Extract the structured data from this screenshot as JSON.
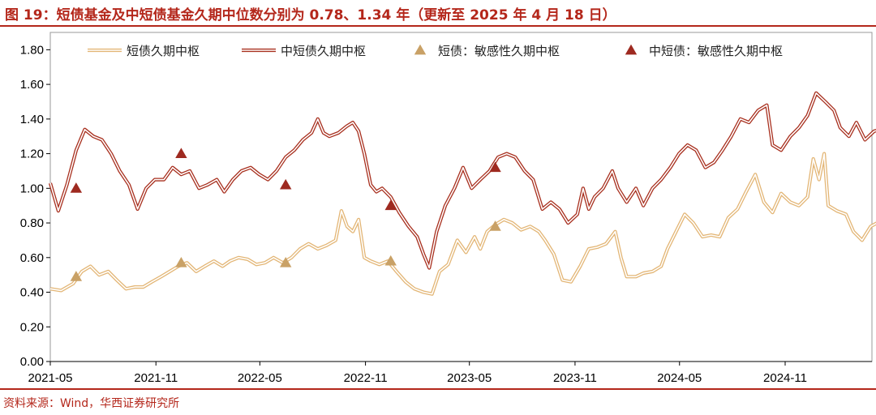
{
  "header": {
    "title": "图 19：短债基金及中短债基金久期中位数分别为 0.78、1.34 年（更新至 2025 年 4 月 18 日）"
  },
  "footer": {
    "source": "资料来源：Wind，华西证券研究所"
  },
  "colors": {
    "brand": "#b4271b",
    "short_line": "#e3b676",
    "mid_line": "#a8301f",
    "short_marker": "#c9a166",
    "mid_marker": "#9e2a20"
  },
  "chart_data": {
    "type": "line",
    "title": "",
    "xlabel": "",
    "ylabel": "",
    "ylim": [
      0,
      1.9
    ],
    "yticks": [
      "0.00",
      "0.20",
      "0.40",
      "0.60",
      "0.80",
      "1.00",
      "1.20",
      "1.40",
      "1.60",
      "1.80"
    ],
    "x_range": [
      "2021-05",
      "2025-04"
    ],
    "xticks": [
      "2021-05",
      "2021-11",
      "2022-05",
      "2022-11",
      "2023-05",
      "2023-11",
      "2024-05",
      "2024-11"
    ],
    "legend_position": "top",
    "legend": [
      "短债久期中枢",
      "中短债久期中枢",
      "短债：敏感性久期中枢",
      "中短债：敏感性久期中枢"
    ],
    "series": [
      {
        "name": "短债久期中枢",
        "kind": "line",
        "points": [
          [
            "2021-05-01",
            0.42
          ],
          [
            "2021-05-20",
            0.41
          ],
          [
            "2021-06-10",
            0.45
          ],
          [
            "2021-06-25",
            0.52
          ],
          [
            "2021-07-10",
            0.55
          ],
          [
            "2021-07-25",
            0.5
          ],
          [
            "2021-08-10",
            0.52
          ],
          [
            "2021-08-25",
            0.47
          ],
          [
            "2021-09-10",
            0.42
          ],
          [
            "2021-09-25",
            0.43
          ],
          [
            "2021-10-10",
            0.43
          ],
          [
            "2021-10-25",
            0.46
          ],
          [
            "2021-11-10",
            0.49
          ],
          [
            "2021-11-25",
            0.52
          ],
          [
            "2021-12-10",
            0.55
          ],
          [
            "2021-12-25",
            0.57
          ],
          [
            "2022-01-10",
            0.52
          ],
          [
            "2022-01-25",
            0.55
          ],
          [
            "2022-02-10",
            0.58
          ],
          [
            "2022-02-25",
            0.55
          ],
          [
            "2022-03-10",
            0.58
          ],
          [
            "2022-03-25",
            0.6
          ],
          [
            "2022-04-10",
            0.59
          ],
          [
            "2022-04-25",
            0.56
          ],
          [
            "2022-05-10",
            0.57
          ],
          [
            "2022-05-25",
            0.6
          ],
          [
            "2022-06-10",
            0.57
          ],
          [
            "2022-06-25",
            0.6
          ],
          [
            "2022-07-10",
            0.65
          ],
          [
            "2022-07-25",
            0.68
          ],
          [
            "2022-08-10",
            0.65
          ],
          [
            "2022-08-25",
            0.67
          ],
          [
            "2022-09-10",
            0.7
          ],
          [
            "2022-09-20",
            0.87
          ],
          [
            "2022-09-30",
            0.78
          ],
          [
            "2022-10-10",
            0.75
          ],
          [
            "2022-10-20",
            0.82
          ],
          [
            "2022-10-30",
            0.6
          ],
          [
            "2022-11-10",
            0.58
          ],
          [
            "2022-11-25",
            0.56
          ],
          [
            "2022-12-10",
            0.58
          ],
          [
            "2022-12-25",
            0.52
          ],
          [
            "2023-01-10",
            0.46
          ],
          [
            "2023-01-25",
            0.42
          ],
          [
            "2023-02-10",
            0.4
          ],
          [
            "2023-02-25",
            0.39
          ],
          [
            "2023-03-10",
            0.52
          ],
          [
            "2023-03-25",
            0.56
          ],
          [
            "2023-04-10",
            0.7
          ],
          [
            "2023-04-25",
            0.63
          ],
          [
            "2023-05-10",
            0.72
          ],
          [
            "2023-05-20",
            0.65
          ],
          [
            "2023-06-01",
            0.75
          ],
          [
            "2023-06-15",
            0.79
          ],
          [
            "2023-06-30",
            0.82
          ],
          [
            "2023-07-15",
            0.8
          ],
          [
            "2023-07-30",
            0.76
          ],
          [
            "2023-08-15",
            0.78
          ],
          [
            "2023-08-30",
            0.75
          ],
          [
            "2023-09-10",
            0.7
          ],
          [
            "2023-09-25",
            0.62
          ],
          [
            "2023-10-10",
            0.47
          ],
          [
            "2023-10-25",
            0.46
          ],
          [
            "2023-11-10",
            0.55
          ],
          [
            "2023-11-25",
            0.65
          ],
          [
            "2023-12-10",
            0.66
          ],
          [
            "2023-12-25",
            0.68
          ],
          [
            "2024-01-10",
            0.75
          ],
          [
            "2024-01-20",
            0.6
          ],
          [
            "2024-01-30",
            0.49
          ],
          [
            "2024-02-15",
            0.49
          ],
          [
            "2024-02-28",
            0.51
          ],
          [
            "2024-03-15",
            0.52
          ],
          [
            "2024-03-30",
            0.55
          ],
          [
            "2024-04-10",
            0.65
          ],
          [
            "2024-04-25",
            0.75
          ],
          [
            "2024-05-10",
            0.85
          ],
          [
            "2024-05-25",
            0.8
          ],
          [
            "2024-06-10",
            0.72
          ],
          [
            "2024-06-25",
            0.73
          ],
          [
            "2024-07-10",
            0.72
          ],
          [
            "2024-07-25",
            0.83
          ],
          [
            "2024-08-10",
            0.88
          ],
          [
            "2024-08-25",
            0.98
          ],
          [
            "2024-09-10",
            1.08
          ],
          [
            "2024-09-25",
            0.92
          ],
          [
            "2024-10-10",
            0.86
          ],
          [
            "2024-10-25",
            0.97
          ],
          [
            "2024-11-10",
            0.92
          ],
          [
            "2024-11-25",
            0.9
          ],
          [
            "2024-12-10",
            0.95
          ],
          [
            "2024-12-20",
            1.17
          ],
          [
            "2024-12-30",
            1.05
          ],
          [
            "2025-01-08",
            1.2
          ],
          [
            "2025-01-15",
            0.9
          ],
          [
            "2025-01-30",
            0.87
          ],
          [
            "2025-02-15",
            0.85
          ],
          [
            "2025-02-28",
            0.75
          ],
          [
            "2025-03-15",
            0.7
          ],
          [
            "2025-03-30",
            0.78
          ],
          [
            "2025-04-10",
            0.8
          ],
          [
            "2025-04-18",
            0.78
          ]
        ]
      },
      {
        "name": "中短债久期中枢",
        "kind": "line",
        "points": [
          [
            "2021-05-01",
            1.03
          ],
          [
            "2021-05-15",
            0.87
          ],
          [
            "2021-05-30",
            1.02
          ],
          [
            "2021-06-15",
            1.22
          ],
          [
            "2021-06-30",
            1.34
          ],
          [
            "2021-07-15",
            1.3
          ],
          [
            "2021-07-30",
            1.28
          ],
          [
            "2021-08-15",
            1.2
          ],
          [
            "2021-08-30",
            1.1
          ],
          [
            "2021-09-15",
            1.02
          ],
          [
            "2021-09-30",
            0.88
          ],
          [
            "2021-10-15",
            1.0
          ],
          [
            "2021-10-30",
            1.05
          ],
          [
            "2021-11-15",
            1.05
          ],
          [
            "2021-11-30",
            1.12
          ],
          [
            "2021-12-15",
            1.08
          ],
          [
            "2021-12-30",
            1.1
          ],
          [
            "2022-01-15",
            1.0
          ],
          [
            "2022-01-30",
            1.02
          ],
          [
            "2022-02-15",
            1.05
          ],
          [
            "2022-02-28",
            0.98
          ],
          [
            "2022-03-15",
            1.05
          ],
          [
            "2022-03-30",
            1.1
          ],
          [
            "2022-04-15",
            1.12
          ],
          [
            "2022-04-30",
            1.08
          ],
          [
            "2022-05-15",
            1.05
          ],
          [
            "2022-05-30",
            1.1
          ],
          [
            "2022-06-15",
            1.18
          ],
          [
            "2022-06-30",
            1.22
          ],
          [
            "2022-07-15",
            1.28
          ],
          [
            "2022-07-30",
            1.32
          ],
          [
            "2022-08-10",
            1.4
          ],
          [
            "2022-08-20",
            1.32
          ],
          [
            "2022-08-30",
            1.3
          ],
          [
            "2022-09-15",
            1.32
          ],
          [
            "2022-09-30",
            1.36
          ],
          [
            "2022-10-10",
            1.38
          ],
          [
            "2022-10-20",
            1.33
          ],
          [
            "2022-10-30",
            1.2
          ],
          [
            "2022-11-10",
            1.02
          ],
          [
            "2022-11-20",
            0.98
          ],
          [
            "2022-11-30",
            1.0
          ],
          [
            "2022-12-15",
            0.95
          ],
          [
            "2022-12-30",
            0.86
          ],
          [
            "2023-01-15",
            0.78
          ],
          [
            "2023-01-30",
            0.72
          ],
          [
            "2023-02-10",
            0.62
          ],
          [
            "2023-02-20",
            0.54
          ],
          [
            "2023-03-05",
            0.75
          ],
          [
            "2023-03-20",
            0.9
          ],
          [
            "2023-04-05",
            1.0
          ],
          [
            "2023-04-20",
            1.12
          ],
          [
            "2023-05-05",
            1.0
          ],
          [
            "2023-05-20",
            1.05
          ],
          [
            "2023-06-05",
            1.1
          ],
          [
            "2023-06-20",
            1.18
          ],
          [
            "2023-07-05",
            1.2
          ],
          [
            "2023-07-20",
            1.18
          ],
          [
            "2023-08-05",
            1.1
          ],
          [
            "2023-08-20",
            1.05
          ],
          [
            "2023-09-05",
            0.88
          ],
          [
            "2023-09-20",
            0.92
          ],
          [
            "2023-10-05",
            0.88
          ],
          [
            "2023-10-20",
            0.8
          ],
          [
            "2023-11-05",
            0.85
          ],
          [
            "2023-11-15",
            1.0
          ],
          [
            "2023-11-25",
            0.88
          ],
          [
            "2023-12-05",
            0.95
          ],
          [
            "2023-12-20",
            1.0
          ],
          [
            "2024-01-05",
            1.1
          ],
          [
            "2024-01-15",
            1.0
          ],
          [
            "2024-01-30",
            0.92
          ],
          [
            "2024-02-15",
            1.0
          ],
          [
            "2024-02-28",
            0.9
          ],
          [
            "2024-03-15",
            1.0
          ],
          [
            "2024-03-30",
            1.05
          ],
          [
            "2024-04-15",
            1.12
          ],
          [
            "2024-04-30",
            1.2
          ],
          [
            "2024-05-15",
            1.25
          ],
          [
            "2024-05-30",
            1.22
          ],
          [
            "2024-06-15",
            1.12
          ],
          [
            "2024-06-30",
            1.15
          ],
          [
            "2024-07-15",
            1.22
          ],
          [
            "2024-07-30",
            1.3
          ],
          [
            "2024-08-15",
            1.4
          ],
          [
            "2024-08-30",
            1.38
          ],
          [
            "2024-09-15",
            1.45
          ],
          [
            "2024-09-30",
            1.48
          ],
          [
            "2024-10-10",
            1.25
          ],
          [
            "2024-10-25",
            1.22
          ],
          [
            "2024-11-10",
            1.3
          ],
          [
            "2024-11-25",
            1.35
          ],
          [
            "2024-12-10",
            1.42
          ],
          [
            "2024-12-25",
            1.55
          ],
          [
            "2025-01-10",
            1.5
          ],
          [
            "2025-01-25",
            1.45
          ],
          [
            "2025-02-05",
            1.35
          ],
          [
            "2025-02-20",
            1.3
          ],
          [
            "2025-03-05",
            1.38
          ],
          [
            "2025-03-20",
            1.28
          ],
          [
            "2025-04-05",
            1.33
          ],
          [
            "2025-04-18",
            1.34
          ]
        ]
      },
      {
        "name": "短债：敏感性久期中枢",
        "kind": "marker",
        "points": [
          [
            "2021-06-15",
            0.49
          ],
          [
            "2021-12-15",
            0.57
          ],
          [
            "2022-06-15",
            0.57
          ],
          [
            "2022-12-15",
            0.58
          ],
          [
            "2023-06-15",
            0.78
          ]
        ]
      },
      {
        "name": "中短债：敏感性久期中枢",
        "kind": "marker",
        "points": [
          [
            "2021-06-15",
            1.0
          ],
          [
            "2021-12-15",
            1.2
          ],
          [
            "2022-06-15",
            1.02
          ],
          [
            "2022-12-15",
            0.9
          ],
          [
            "2023-06-15",
            1.12
          ]
        ]
      }
    ]
  }
}
